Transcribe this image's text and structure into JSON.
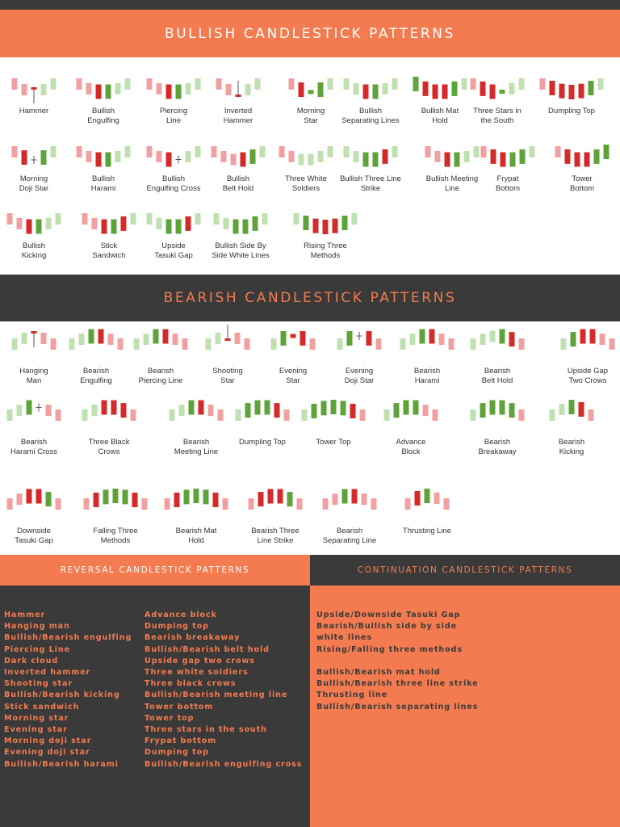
{
  "colors": {
    "accent": "#f47b4f",
    "dark": "#3a3a3a",
    "bull_candle": "#5da33a",
    "bull_light": "#bfe0b0",
    "bear_candle": "#d42a2a",
    "bear_light": "#f0a0a0"
  },
  "bullish": {
    "title": "BULLISH CANDLESTICK PATTERNS",
    "patterns": [
      {
        "id": "hammer",
        "label": "Hammer",
        "candles": [
          "LR",
          "LR",
          "H",
          "LG",
          "LG"
        ]
      },
      {
        "id": "bullish-engulfing",
        "label": "Bullish\nEngulfing",
        "candles": [
          "LR",
          "LR",
          "R",
          "G",
          "LG",
          "LG"
        ]
      },
      {
        "id": "piercing-line",
        "label": "Piercing\nLine",
        "candles": [
          "LR",
          "LR",
          "R",
          "G",
          "LG",
          "LG"
        ]
      },
      {
        "id": "inverted-hammer",
        "label": "Inverted\nHammer",
        "candles": [
          "LR",
          "LR",
          "IH",
          "LG",
          "LG"
        ]
      },
      {
        "id": "morning-star",
        "label": "Morning\nStar",
        "candles": [
          "LR",
          "R",
          "S",
          "G",
          "LG"
        ]
      },
      {
        "id": "bullish-separating-lines",
        "label": "Bullish\nSeparating Lines",
        "candles": [
          "LG",
          "LG",
          "R",
          "G",
          "LG",
          "LG"
        ]
      },
      {
        "id": "bullish-mat-hold",
        "label": "Bullish Mat\nHold",
        "candles": [
          "G",
          "R",
          "R",
          "R",
          "G",
          "LG"
        ]
      },
      {
        "id": "three-stars-in-the-south",
        "label": "Three Stars in\nthe South",
        "candles": [
          "LR",
          "R",
          "R",
          "S",
          "LG",
          "LG"
        ]
      },
      {
        "id": "dumpling-top",
        "label": "Dumpling Top",
        "candles": [
          "LR",
          "R",
          "R",
          "R",
          "R",
          "G",
          "LG"
        ]
      },
      {
        "id": "morning-doji-star",
        "label": "Morning\nDoji Star",
        "candles": [
          "LR",
          "R",
          "D",
          "G",
          "LG"
        ]
      },
      {
        "id": "bullish-harami",
        "label": "Bullish\nHarami",
        "candles": [
          "LR",
          "LR",
          "R",
          "G",
          "LG",
          "LG"
        ]
      },
      {
        "id": "bullish-engulfing-cross",
        "label": "Bullish\nEngulfing Cross",
        "candles": [
          "LR",
          "LR",
          "R",
          "D",
          "LG",
          "LG"
        ]
      },
      {
        "id": "bullish-belt-hold",
        "label": "Bullish\nBelt Hold",
        "candles": [
          "LR",
          "LR",
          "LR",
          "R",
          "G",
          "LG"
        ]
      },
      {
        "id": "three-white-soldiers",
        "label": "Three White\nSoldiers",
        "candles": [
          "LR",
          "LR",
          "LG",
          "LG",
          "LG",
          "LG"
        ]
      },
      {
        "id": "bullish-three-line-strike",
        "label": "Bullish Three Line\nStrike",
        "candles": [
          "LG",
          "LG",
          "G",
          "G",
          "R",
          "LG"
        ]
      },
      {
        "id": "bullish-meeting-line",
        "label": "Bullish Meeting\nLine",
        "candles": [
          "LR",
          "LR",
          "R",
          "G",
          "LG",
          "LG"
        ]
      },
      {
        "id": "frypat-bottom",
        "label": "Frypat\nBottom",
        "candles": [
          "LR",
          "R",
          "R",
          "G",
          "G",
          "LG"
        ]
      },
      {
        "id": "tower-bottom",
        "label": "Tower\nBottom",
        "candles": [
          "LR",
          "R",
          "R",
          "R",
          "G",
          "G"
        ]
      },
      {
        "id": "bullish-kicking",
        "label": "Bullish\nKicking",
        "candles": [
          "LR",
          "LR",
          "R",
          "G",
          "LG",
          "LG"
        ]
      },
      {
        "id": "stick-sandwich",
        "label": "Stick\nSandwich",
        "candles": [
          "LR",
          "LR",
          "R",
          "G",
          "R",
          "LG"
        ]
      },
      {
        "id": "upside-tasuki-gap",
        "label": "Upside\nTasuki Gap",
        "candles": [
          "LG",
          "LG",
          "G",
          "G",
          "R",
          "LG"
        ]
      },
      {
        "id": "bullish-side-by-side-white-lines",
        "label": "Bullish Side By\nSide White Lines",
        "candles": [
          "LG",
          "LG",
          "G",
          "G",
          "G",
          "LG"
        ]
      },
      {
        "id": "rising-three-methods",
        "label": "Rising Three\nMethods",
        "candles": [
          "LG",
          "G",
          "R",
          "R",
          "R",
          "G",
          "LG"
        ]
      }
    ]
  },
  "bearish": {
    "title": "BEARISH CANDLESTICK PATTERNS",
    "patterns": [
      {
        "id": "hanging-man",
        "label": "Hanging\nMan",
        "candles": [
          "LG",
          "LG",
          "HM",
          "LR",
          "LR"
        ]
      },
      {
        "id": "bearish-engulfing",
        "label": "Bearish\nEngulfing",
        "candles": [
          "LG",
          "LG",
          "G",
          "R",
          "LR",
          "LR"
        ]
      },
      {
        "id": "bearish-piercing-line",
        "label": "Bearish\nPiercing Line",
        "candles": [
          "LG",
          "LG",
          "G",
          "R",
          "LR",
          "LR"
        ]
      },
      {
        "id": "shooting-star",
        "label": "Shooting\nStar",
        "candles": [
          "LG",
          "LG",
          "SS",
          "LR",
          "LR"
        ]
      },
      {
        "id": "evening-star",
        "label": "Evening\nStar",
        "candles": [
          "LG",
          "G",
          "S",
          "R",
          "LR"
        ]
      },
      {
        "id": "evening-doji-star",
        "label": "Evening\nDoji Star",
        "candles": [
          "LG",
          "G",
          "D",
          "R",
          "LR"
        ]
      },
      {
        "id": "bearish-harami",
        "label": "Bearish\nHarami",
        "candles": [
          "LG",
          "LG",
          "G",
          "R",
          "LR",
          "LR"
        ]
      },
      {
        "id": "bearish-belt-hold",
        "label": "Bearish\nBelt Hold",
        "candles": [
          "LG",
          "LG",
          "LG",
          "G",
          "R",
          "LR"
        ]
      },
      {
        "id": "upside-gap-two-crows",
        "label": "Upside Gap\nTwo Crows",
        "candles": [
          "LG",
          "G",
          "R",
          "R",
          "LR",
          "LR"
        ]
      },
      {
        "id": "bearish-harami-cross",
        "label": "Bearish\nHarami Cross",
        "candles": [
          "LG",
          "LG",
          "G",
          "D",
          "LR",
          "LR"
        ]
      },
      {
        "id": "three-black-crows",
        "label": "Three Black\nCrows",
        "candles": [
          "LG",
          "LG",
          "R",
          "R",
          "R",
          "LR"
        ]
      },
      {
        "id": "bearish-meeting-line",
        "label": "Bearish\nMeeting Line",
        "candles": [
          "LG",
          "LG",
          "G",
          "R",
          "LR",
          "LR"
        ]
      },
      {
        "id": "dumpling-top-bear",
        "label": "Dumpling Top",
        "candles": [
          "LG",
          "G",
          "G",
          "G",
          "R",
          "LR"
        ]
      },
      {
        "id": "tower-top",
        "label": "Tower Top",
        "candles": [
          "LG",
          "G",
          "G",
          "G",
          "G",
          "R",
          "LR"
        ]
      },
      {
        "id": "advance-block",
        "label": "Advance\nBlock",
        "candles": [
          "LG",
          "G",
          "G",
          "G",
          "LR",
          "LR"
        ]
      },
      {
        "id": "bearish-breakaway",
        "label": "Bearish\nBreakaway",
        "candles": [
          "LG",
          "G",
          "G",
          "G",
          "G",
          "LR"
        ]
      },
      {
        "id": "bearish-kicking",
        "label": "Bearish\nKicking",
        "candles": [
          "LG",
          "LG",
          "G",
          "R",
          "LR"
        ]
      },
      {
        "id": "downside-tasuki-gap",
        "label": "Downside\nTasuki Gap",
        "candles": [
          "LR",
          "LR",
          "R",
          "R",
          "G",
          "LR"
        ]
      },
      {
        "id": "falling-three-methods",
        "label": "Falling Three\nMethods",
        "candles": [
          "LR",
          "R",
          "G",
          "G",
          "G",
          "R",
          "LR"
        ]
      },
      {
        "id": "bearish-mat-hold",
        "label": "Bearish Mat\nHold",
        "candles": [
          "LR",
          "R",
          "G",
          "G",
          "G",
          "R",
          "LR"
        ]
      },
      {
        "id": "bearish-three-line-strike",
        "label": "Bearish Three\nLine Strike",
        "candles": [
          "LR",
          "R",
          "R",
          "R",
          "G",
          "LR"
        ]
      },
      {
        "id": "bearish-separating-line",
        "label": "Bearish\nSeparating Line",
        "candles": [
          "LR",
          "LR",
          "G",
          "R",
          "LR",
          "LR"
        ]
      },
      {
        "id": "thrusting-line",
        "label": "Thrusting Line",
        "candles": [
          "LR",
          "R",
          "G",
          "LR",
          "LR"
        ]
      }
    ]
  },
  "reversal": {
    "title": "REVERSAL CANDLESTICK PATTERNS",
    "col1": [
      "Hammer",
      "Hanging man",
      "Bullish/Bearish engulfing",
      "Piercing Line",
      "Dark cloud",
      "Inverted hammer",
      "Shooting star",
      "Bullish/Bearish kicking",
      "Stick sandwich",
      "Morning star",
      "Evening star",
      "Morning doji star",
      "Evening doji star",
      "Bullish/Bearish harami"
    ],
    "col2": [
      "Advance block",
      "Dumping top",
      "Bearish breakaway",
      "Bullish/Bearish belt hold",
      "Upside gap two crows",
      "Three white soldiers",
      "Three black crows",
      "Bullish/Bearish meeting line",
      "Tower bottom",
      "Tower top",
      "Three stars in the south",
      "Frypat bottom",
      "Dumping top",
      "Bullish/Bearish engulfing cross"
    ]
  },
  "continuation": {
    "title": "CONTINUATION CANDLESTICK PATTERNS",
    "group1": [
      "Upside/Downside Tasuki Gap",
      "Bearish/Bullish side by side",
      "white lines",
      "Rising/Falling three methods"
    ],
    "group2": [
      "Bullish/Bearish mat hold",
      "Bullish/Bearish three line strike",
      "Thrusting line",
      "Bullish/Bearish separating lines"
    ]
  }
}
